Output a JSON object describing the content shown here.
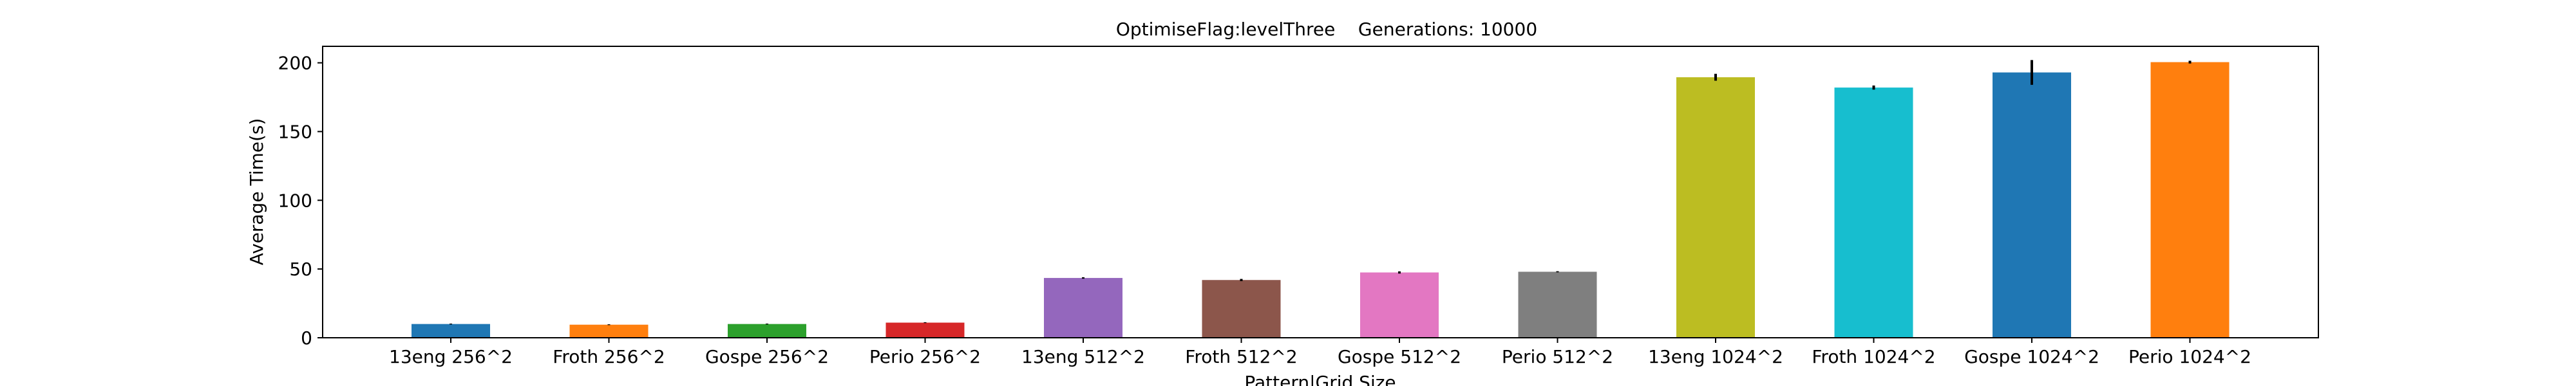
{
  "chart_data": {
    "type": "bar",
    "title": "OptimiseFlag:levelThree    Generations: 10000",
    "xlabel": "Pattern|Grid Size",
    "ylabel": "Average Time(s)",
    "ylim": [
      0,
      212
    ],
    "yticks": [
      "0",
      "50",
      "100",
      "150",
      "200"
    ],
    "grid": false,
    "legend": "none",
    "categories": [
      "13eng 256^2",
      "Froth 256^2",
      "Gospe 256^2",
      "Perio 256^2",
      "13eng 512^2",
      "Froth 512^2",
      "Gospe 512^2",
      "Perio 512^2",
      "13eng 1024^2",
      "Froth 1024^2",
      "Gospe 1024^2",
      "Perio 1024^2"
    ],
    "values": [
      10.0,
      9.5,
      10.0,
      11.0,
      43.5,
      42.0,
      47.5,
      48.0,
      189.5,
      182.0,
      193.0,
      200.5
    ],
    "errors": [
      0.3,
      0.3,
      0.3,
      0.3,
      0.5,
      0.8,
      0.8,
      0.4,
      2.5,
      1.5,
      9.0,
      1.0
    ],
    "colors": [
      "#1f77b4",
      "#ff7f0e",
      "#2ca02c",
      "#d62728",
      "#9467bd",
      "#8c564b",
      "#e377c2",
      "#7f7f7f",
      "#bcbd22",
      "#17becf",
      "#1f77b4",
      "#ff7f0e"
    ]
  }
}
